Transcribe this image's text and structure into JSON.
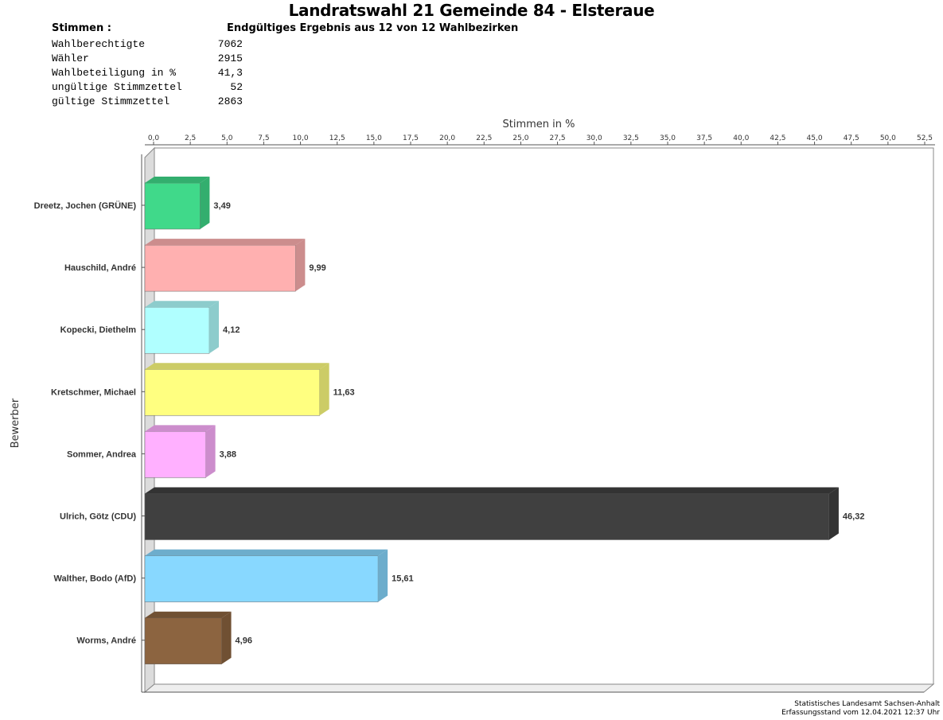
{
  "header": {
    "title": "Landratswahl 21 Gemeinde 84 - Elsteraue",
    "stimmen_label": "Stimmen  :",
    "subtitle": "Endgültiges Ergebnis aus 12 von 12 Wahlbezirken"
  },
  "stats": [
    {
      "label": "Wahlberechtigte",
      "value": "7062"
    },
    {
      "label": "Wähler",
      "value": "2915"
    },
    {
      "label": "Wahlbeteiligung in %",
      "value": "41,3"
    },
    {
      "label": "ungültige Stimmzettel",
      "value": "52"
    },
    {
      "label": "gültige Stimmzettel",
      "value": "2863"
    }
  ],
  "footer": {
    "line1": "Statistisches Landesamt Sachsen-Anhalt",
    "line2": "Erfassungsstand vom 12.04.2021 12:37 Uhr"
  },
  "chart_data": {
    "type": "bar",
    "orientation": "horizontal",
    "xlabel": "Stimmen in %",
    "ylabel": "Bewerber",
    "xlim": [
      0,
      52.5
    ],
    "xticks": [
      "0,0",
      "2,5",
      "5,0",
      "7,5",
      "10,0",
      "12,5",
      "15,0",
      "17,5",
      "20,0",
      "22,5",
      "25,0",
      "27,5",
      "30,0",
      "32,5",
      "35,0",
      "37,5",
      "40,0",
      "42,5",
      "45,0",
      "47,5",
      "50,0",
      "52,5"
    ],
    "tick_step": 2.5,
    "axis_position": "top",
    "grid": false,
    "categories": [
      "Dreetz, Jochen (GRÜNE)",
      "Hauschild, André",
      "Kopecki, Diethelm",
      "Kretschmer, Michael",
      "Sommer, Andrea",
      "Ulrich, Götz (CDU)",
      "Walther, Bodo (AfD)",
      "Worms, André"
    ],
    "values": [
      3.49,
      9.99,
      4.12,
      11.63,
      3.88,
      46.32,
      15.61,
      4.96
    ],
    "value_labels": [
      "3,49",
      "9,99",
      "4,12",
      "11,63",
      "3,88",
      "46,32",
      "15,61",
      "4,96"
    ],
    "colors": [
      "#40D98A",
      "#FFB0B0",
      "#B0FFFF",
      "#FFFF80",
      "#FFB0FF",
      "#404040",
      "#88D8FF",
      "#8C6440"
    ],
    "side_colors": [
      "#33AE6E",
      "#CC8D8D",
      "#8DCCCC",
      "#CCCC66",
      "#CC8DCC",
      "#333333",
      "#6DADCC",
      "#705033"
    ]
  }
}
